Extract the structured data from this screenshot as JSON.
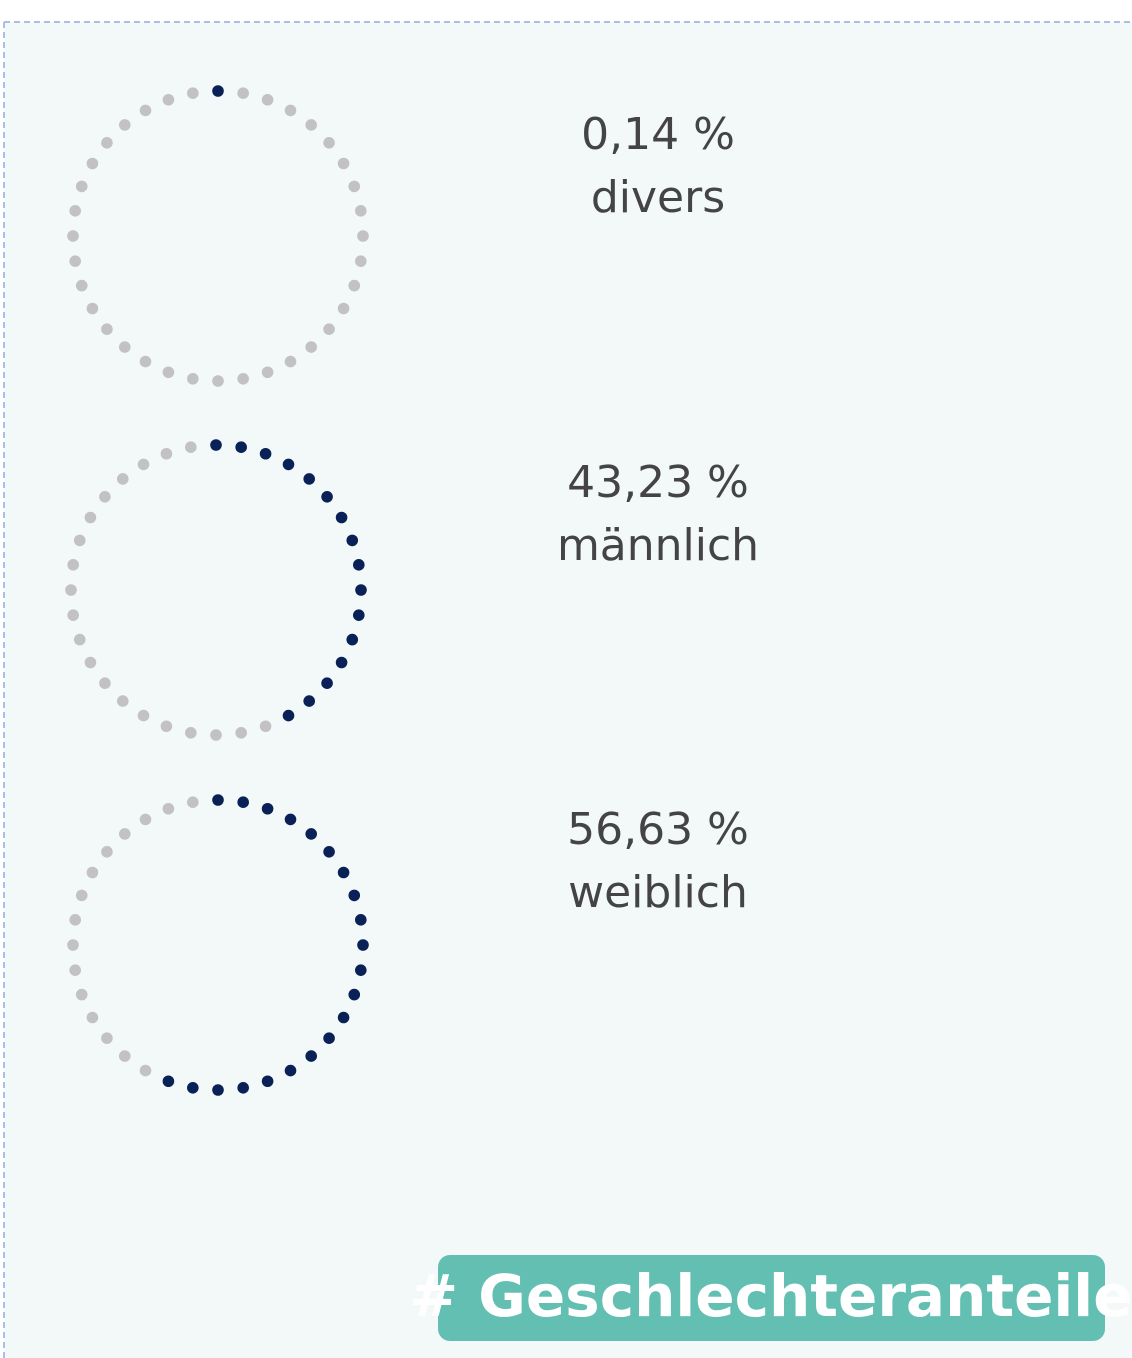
{
  "chart_data": {
    "type": "dot-ring",
    "categories": [
      "divers",
      "männlich",
      "weiblich"
    ],
    "values": [
      0.14,
      43.23,
      56.63
    ],
    "value_labels": [
      "0,14 %",
      "43,23 %",
      "56,63 %"
    ],
    "color": "#0a2157",
    "track_color": "#c2c2c2",
    "tag": "# Geschlechteranteile"
  }
}
